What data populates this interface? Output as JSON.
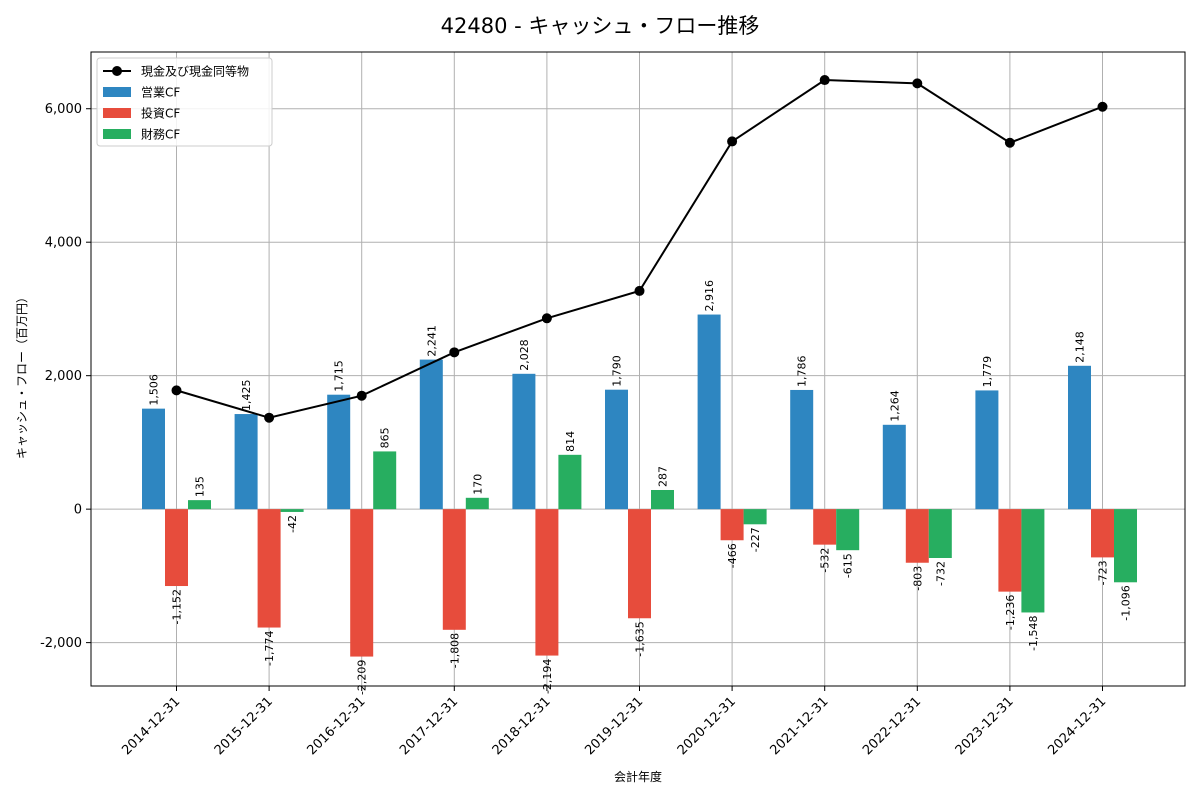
{
  "chart_data": {
    "type": "bar",
    "title": "42480 - キャッシュ・フロー推移",
    "xlabel": "会計年度",
    "ylabel": "キャッシュ・フロー（百万円）",
    "categories": [
      "2014-12-31",
      "2015-12-31",
      "2016-12-31",
      "2017-12-31",
      "2018-12-31",
      "2019-12-31",
      "2020-12-31",
      "2021-12-31",
      "2022-12-31",
      "2023-12-31",
      "2024-12-31"
    ],
    "series": [
      {
        "name": "営業CF",
        "kind": "bar",
        "color": "#2e86c1",
        "values": [
          1506,
          1425,
          1715,
          2241,
          2028,
          1790,
          2916,
          1786,
          1264,
          1779,
          2148
        ]
      },
      {
        "name": "投資CF",
        "kind": "bar",
        "color": "#e74c3c",
        "values": [
          -1152,
          -1774,
          -2209,
          -1808,
          -2194,
          -1635,
          -466,
          -532,
          -803,
          -1236,
          -723
        ]
      },
      {
        "name": "財務CF",
        "kind": "bar",
        "color": "#27ae60",
        "values": [
          135,
          -42,
          865,
          170,
          814,
          287,
          -227,
          -615,
          -732,
          -1548,
          -1096
        ]
      },
      {
        "name": "現金及び現金同等物",
        "kind": "line",
        "color": "#000000",
        "values": [
          1780,
          1370,
          1700,
          2350,
          2860,
          3270,
          5510,
          6430,
          6380,
          5490,
          6030
        ]
      }
    ],
    "ylim": [
      -2650,
      6850
    ],
    "yticks": [
      -2000,
      0,
      2000,
      4000,
      6000
    ],
    "ytick_labels": [
      "-2,000",
      "0",
      "2,000",
      "4,000",
      "6,000"
    ],
    "grid": true,
    "legend": "top-left"
  }
}
